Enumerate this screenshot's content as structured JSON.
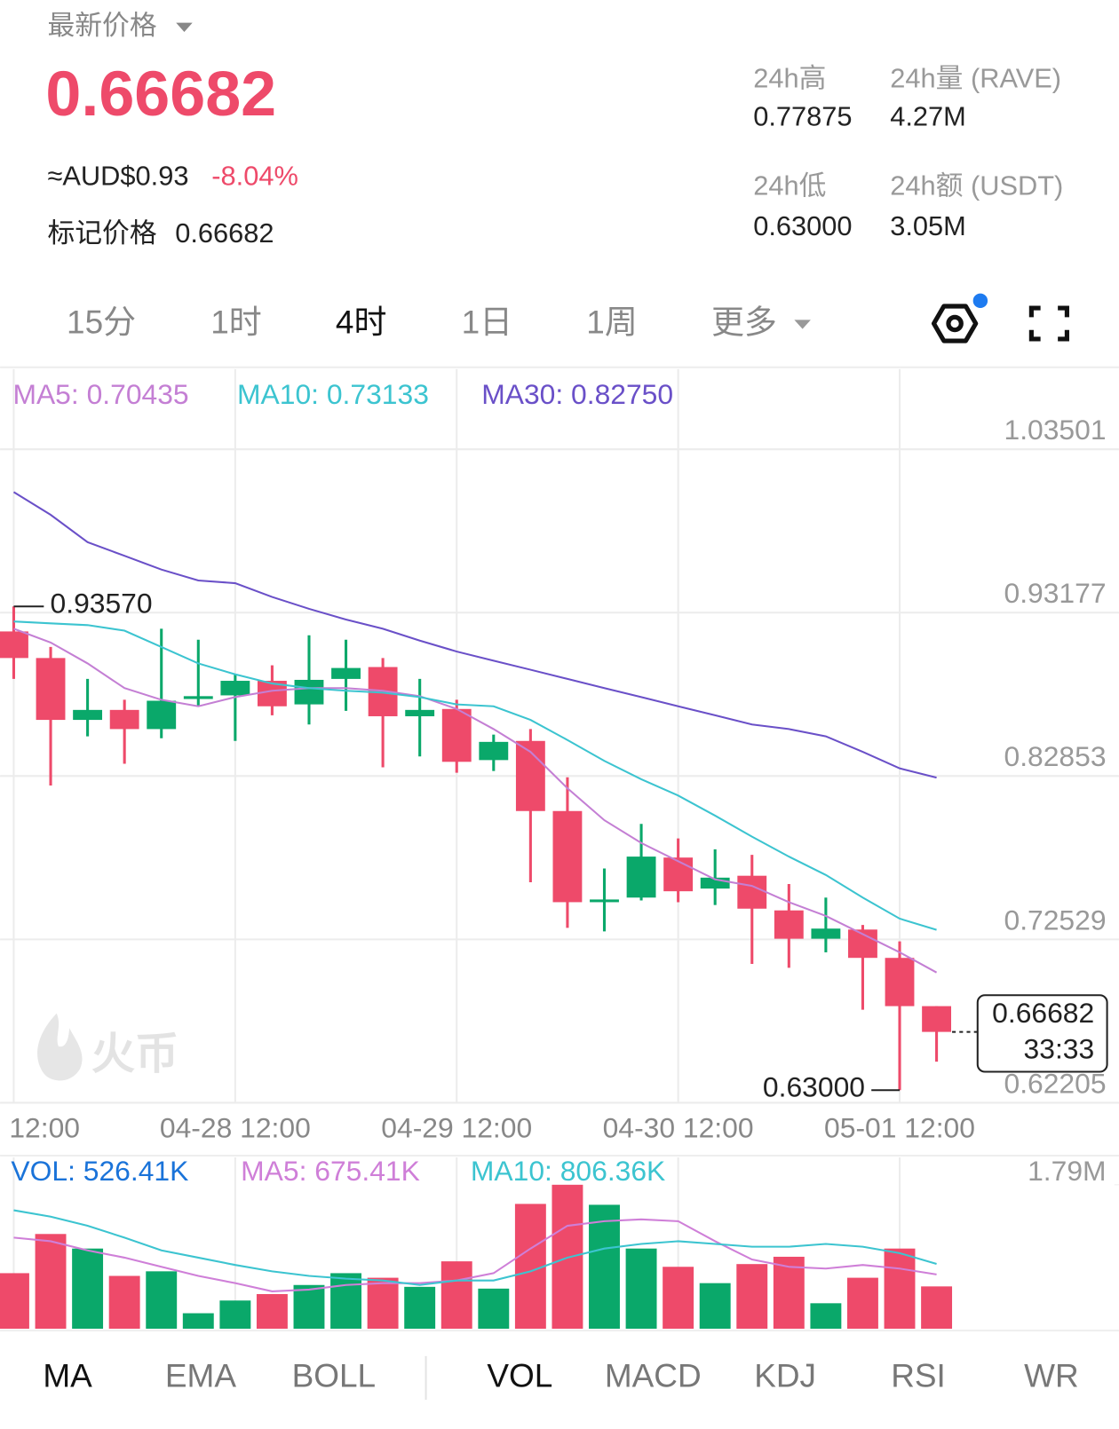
{
  "header": {
    "title": "最新价格",
    "price": "0.66682",
    "fiat": "≈AUD$0.93",
    "change": "-8.04%",
    "mark_label": "标记价格",
    "mark_price": "0.66682"
  },
  "stats": [
    {
      "label": "24h高",
      "value": "0.77875"
    },
    {
      "label": "24h量 (RAVE)",
      "value": "4.27M"
    },
    {
      "label": "24h低",
      "value": "0.63000"
    },
    {
      "label": "24h额 (USDT)",
      "value": "3.05M"
    }
  ],
  "timeframes": [
    "15分",
    "1时",
    "4时",
    "1日",
    "1周",
    "更多"
  ],
  "active_timeframe": 2,
  "indicator_tabs": {
    "main": [
      "MA",
      "EMA",
      "BOLL"
    ],
    "sub": [
      "VOL",
      "MACD",
      "KDJ",
      "RSI",
      "WR"
    ],
    "active_main": 0,
    "active_sub": 0
  },
  "watermark": "火币",
  "chart_data": [
    {
      "type": "candlestick",
      "categories": [
        "12:00",
        null,
        null,
        null,
        null,
        null,
        "04-28 12:00",
        null,
        null,
        null,
        null,
        null,
        "04-29 12:00",
        null,
        null,
        null,
        null,
        null,
        "04-30 12:00",
        null,
        null,
        null,
        null,
        null,
        "05-01 12:00",
        null
      ],
      "open": [
        0.9199,
        0.9031,
        0.864,
        0.8703,
        0.8582,
        0.8772,
        0.8795,
        0.8887,
        0.8738,
        0.8899,
        0.8974,
        0.8663,
        0.8709,
        0.8386,
        0.8507,
        0.8064,
        0.7488,
        0.7517,
        0.777,
        0.7574,
        0.7655,
        0.7436,
        0.7257,
        0.7315,
        0.7136,
        0.6831
      ],
      "high": [
        0.9357,
        0.9101,
        0.8899,
        0.8767,
        0.9216,
        0.9147,
        0.8928,
        0.8985,
        0.9175,
        0.9147,
        0.9031,
        0.8899,
        0.8767,
        0.8547,
        0.8582,
        0.8277,
        0.7701,
        0.7983,
        0.7891,
        0.7822,
        0.7787,
        0.7603,
        0.7517,
        0.7344,
        0.724,
        0.6831
      ],
      "low": [
        0.8899,
        0.8225,
        0.8536,
        0.8363,
        0.8524,
        0.8726,
        0.8507,
        0.8669,
        0.8611,
        0.8697,
        0.834,
        0.8409,
        0.8306,
        0.8317,
        0.7614,
        0.7326,
        0.7303,
        0.7499,
        0.7488,
        0.747,
        0.7098,
        0.7073,
        0.7171,
        0.6808,
        0.63,
        0.648
      ],
      "close": [
        0.9031,
        0.864,
        0.8703,
        0.8582,
        0.8761,
        0.879,
        0.8887,
        0.8726,
        0.8893,
        0.8968,
        0.8663,
        0.8703,
        0.8375,
        0.8501,
        0.8064,
        0.7488,
        0.7505,
        0.7776,
        0.7557,
        0.7643,
        0.7447,
        0.7257,
        0.7321,
        0.7136,
        0.6831,
        0.66682
      ],
      "up_color": "#0aa86a",
      "down_color": "#ee4a6a",
      "ylim": [
        0.62205,
        1.03501
      ],
      "yticks": [
        0.62205,
        0.72529,
        0.82853,
        0.93177,
        1.03501
      ],
      "grid": true,
      "series": [
        {
          "name": "MA5",
          "label": "MA5: 0.70435",
          "color": "#c47fd4",
          "values": [
            0.9216,
            0.9129,
            0.8997,
            0.8841,
            0.8767,
            0.8726,
            0.8784,
            0.8824,
            0.8841,
            0.8841,
            0.8824,
            0.879,
            0.8709,
            0.8582,
            0.8438,
            0.8208,
            0.8006,
            0.7862,
            0.7747,
            0.7632,
            0.7591,
            0.7488,
            0.7401,
            0.7286,
            0.7171,
            0.70435
          ]
        },
        {
          "name": "MA10",
          "label": "MA10: 0.73133",
          "color": "#3cc4d0",
          "values": [
            0.9262,
            0.925,
            0.9239,
            0.9204,
            0.9101,
            0.8997,
            0.8928,
            0.887,
            0.8841,
            0.8824,
            0.8812,
            0.8784,
            0.8738,
            0.8726,
            0.864,
            0.8513,
            0.8381,
            0.8265,
            0.8162,
            0.8035,
            0.7902,
            0.7776,
            0.766,
            0.7517,
            0.7384,
            0.73133
          ]
        },
        {
          "name": "MA30",
          "label": "MA30: 0.82750",
          "color": "#6a50c8",
          "values": [
            1.008,
            0.9936,
            0.9763,
            0.9677,
            0.959,
            0.9521,
            0.9504,
            0.9417,
            0.9342,
            0.9274,
            0.9216,
            0.9141,
            0.9072,
            0.9014,
            0.8957,
            0.8899,
            0.8841,
            0.8784,
            0.8726,
            0.8669,
            0.8611,
            0.8582,
            0.8536,
            0.8438,
            0.8334,
            0.8275
          ]
        }
      ],
      "annotations": [
        {
          "text": "0.93570",
          "value": 0.9357,
          "index": 0
        },
        {
          "text": "0.63000",
          "value": 0.63,
          "index": 24
        }
      ],
      "last_price": {
        "label": "0.66682",
        "countdown": "33:33"
      }
    },
    {
      "type": "bar",
      "label": "VOL: 526.41K",
      "label_color": "#1a73d9",
      "values": [
        691000,
        1178000,
        997000,
        657000,
        714000,
        193000,
        351000,
        431000,
        544000,
        691000,
        634000,
        521000,
        838000,
        499000,
        1552000,
        1790000,
        1541000,
        997000,
        770000,
        567000,
        804000,
        895000,
        317000,
        634000,
        997000,
        526410
      ],
      "ylim": [
        0,
        1790000
      ],
      "yticks": [
        {
          "value": 1790000,
          "label": "1.79M"
        }
      ],
      "series": [
        {
          "name": "MA5",
          "label": "MA5: 675.41K",
          "color": "#cf7fd8",
          "values": [
            1133000,
            1088000,
            974000,
            884000,
            770000,
            657000,
            567000,
            465000,
            487000,
            544000,
            567000,
            567000,
            600000,
            691000,
            997000,
            1280000,
            1337000,
            1360000,
            1337000,
            1088000,
            861000,
            770000,
            748000,
            793000,
            748000,
            675410
          ]
        },
        {
          "name": "MA10",
          "label": "MA10: 806.36K",
          "color": "#3cc4d0",
          "values": [
            1473000,
            1394000,
            1280000,
            1133000,
            974000,
            884000,
            793000,
            714000,
            657000,
            623000,
            600000,
            544000,
            600000,
            600000,
            714000,
            884000,
            997000,
            1054000,
            1088000,
            1054000,
            1020000,
            1020000,
            1054000,
            1020000,
            940000,
            806360
          ]
        }
      ]
    }
  ]
}
